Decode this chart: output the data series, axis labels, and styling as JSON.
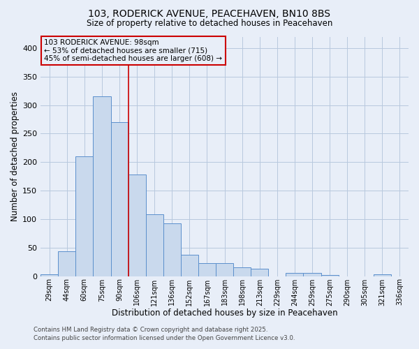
{
  "title1": "103, RODERICK AVENUE, PEACEHAVEN, BN10 8BS",
  "title2": "Size of property relative to detached houses in Peacehaven",
  "xlabel": "Distribution of detached houses by size in Peacehaven",
  "ylabel": "Number of detached properties",
  "categories": [
    "29sqm",
    "44sqm",
    "60sqm",
    "75sqm",
    "90sqm",
    "106sqm",
    "121sqm",
    "136sqm",
    "152sqm",
    "167sqm",
    "183sqm",
    "198sqm",
    "213sqm",
    "229sqm",
    "244sqm",
    "259sqm",
    "275sqm",
    "290sqm",
    "305sqm",
    "321sqm",
    "336sqm"
  ],
  "values": [
    3,
    44,
    210,
    315,
    270,
    178,
    108,
    92,
    38,
    23,
    23,
    15,
    13,
    0,
    5,
    5,
    2,
    0,
    0,
    3,
    0
  ],
  "bar_color": "#c9d9ed",
  "bar_edge_color": "#5b8fcc",
  "bar_edge_width": 0.7,
  "ylim": [
    0,
    420
  ],
  "yticks": [
    0,
    50,
    100,
    150,
    200,
    250,
    300,
    350,
    400
  ],
  "red_line_x": 4.5,
  "red_line_color": "#cc0000",
  "annotation_text": "103 RODERICK AVENUE: 98sqm\n← 53% of detached houses are smaller (715)\n45% of semi-detached houses are larger (608) →",
  "annotation_box_color": "#cc0000",
  "grid_color": "#b8c8de",
  "bg_color": "#e8eef8",
  "footer_line1": "Contains HM Land Registry data © Crown copyright and database right 2025.",
  "footer_line2": "Contains public sector information licensed under the Open Government Licence v3.0."
}
